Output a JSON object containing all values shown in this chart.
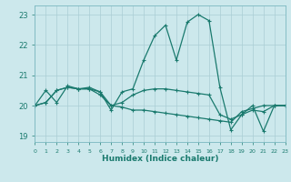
{
  "xlabel": "Humidex (Indice chaleur)",
  "xlim": [
    0,
    23
  ],
  "ylim": [
    18.8,
    23.3
  ],
  "yticks": [
    19,
    20,
    21,
    22,
    23
  ],
  "xticks": [
    0,
    1,
    2,
    3,
    4,
    5,
    6,
    7,
    8,
    9,
    10,
    11,
    12,
    13,
    14,
    15,
    16,
    17,
    18,
    19,
    20,
    21,
    22,
    23
  ],
  "bg_color": "#cce8ec",
  "line_color": "#1a7a6e",
  "grid_color": "#aacdd4",
  "line1_x": [
    0,
    1,
    2,
    3,
    4,
    5,
    6,
    7,
    8,
    9,
    10,
    11,
    12,
    13,
    14,
    15,
    16,
    17,
    18,
    19,
    20,
    21,
    22,
    23
  ],
  "line1_y": [
    20.0,
    20.5,
    20.1,
    20.65,
    20.55,
    20.55,
    20.45,
    19.85,
    20.45,
    20.55,
    21.5,
    22.3,
    22.65,
    21.5,
    22.75,
    23.0,
    22.8,
    20.6,
    19.2,
    19.7,
    20.0,
    19.15,
    20.0,
    20.0
  ],
  "line2_x": [
    0,
    1,
    2,
    3,
    4,
    5,
    6,
    7,
    8,
    9,
    10,
    11,
    12,
    13,
    14,
    15,
    16,
    17,
    18,
    19,
    20,
    21,
    22,
    23
  ],
  "line2_y": [
    20.0,
    20.1,
    20.5,
    20.6,
    20.55,
    20.6,
    20.45,
    20.0,
    19.95,
    19.85,
    19.85,
    19.8,
    19.75,
    19.7,
    19.65,
    19.6,
    19.55,
    19.5,
    19.45,
    19.8,
    19.9,
    20.0,
    20.0,
    20.0
  ],
  "line3_x": [
    0,
    1,
    2,
    3,
    4,
    5,
    6,
    7,
    8,
    9,
    10,
    11,
    12,
    13,
    14,
    15,
    16,
    17,
    18,
    19,
    20,
    21,
    22,
    23
  ],
  "line3_y": [
    20.0,
    20.1,
    20.5,
    20.6,
    20.55,
    20.55,
    20.35,
    20.0,
    20.1,
    20.35,
    20.5,
    20.55,
    20.55,
    20.5,
    20.45,
    20.4,
    20.35,
    19.7,
    19.55,
    19.7,
    19.85,
    19.8,
    20.0,
    20.0
  ],
  "fig_width": 3.2,
  "fig_height": 2.0,
  "dpi": 100
}
